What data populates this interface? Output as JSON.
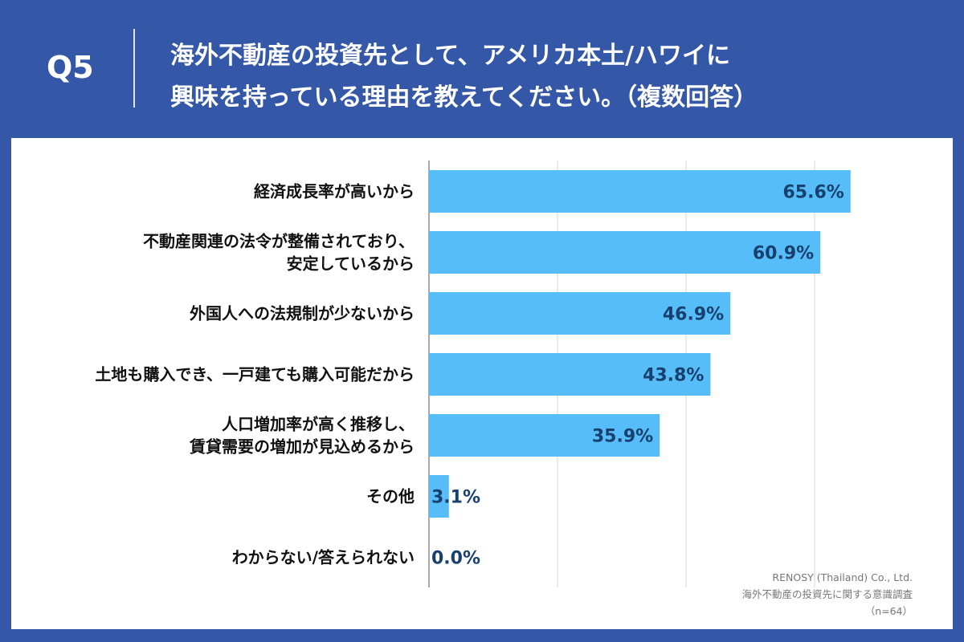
{
  "header": {
    "question": "Q5",
    "title_line1": "海外不動産の投資先として、アメリカ本土/ハワイに",
    "title_line2": "興味を持っている理由を教えてください。（複数回答）"
  },
  "source": {
    "company": "RENOSY (Thailand) Co., Ltd.",
    "survey": "海外不動産の投資先に関する意識調査",
    "sample": "（n=64）"
  },
  "colors": {
    "background": "#3557a7",
    "bar": "#57bdf8",
    "value_text": "#17406e",
    "grid": "#d6d6d6"
  },
  "chart_data": {
    "type": "bar",
    "orientation": "horizontal",
    "xlim": [
      0,
      75
    ],
    "grid": true,
    "categories": [
      [
        "経済成長率が高いから"
      ],
      [
        "不動産関連の法令が整備されており、",
        "安定しているから"
      ],
      [
        "外国人への法規制が少ないから"
      ],
      [
        "土地も購入でき、一戸建ても購入可能だから"
      ],
      [
        "人口増加率が高く推移し、",
        "賃貸需要の増加が見込めるから"
      ],
      [
        "その他"
      ],
      [
        "わからない/答えられない"
      ]
    ],
    "values": [
      65.6,
      60.9,
      46.9,
      43.8,
      35.9,
      3.1,
      0.0
    ],
    "value_labels": [
      "65.6%",
      "60.9%",
      "46.9%",
      "43.8%",
      "35.9%",
      "3.1%",
      "0.0%"
    ]
  }
}
